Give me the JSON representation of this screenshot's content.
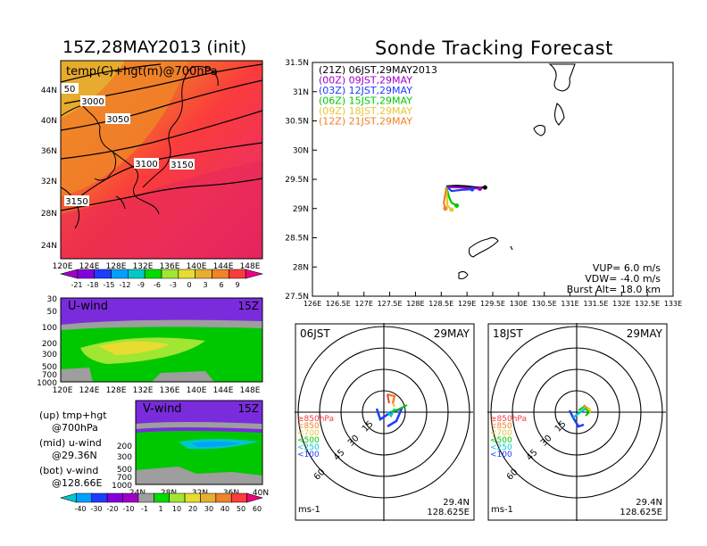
{
  "titles": {
    "left": "15Z,28MAY2013 (init)",
    "right": "Sonde Tracking Forecast"
  },
  "map_panel": {
    "label": "temp(C)+hgt(m)@700hPa",
    "lat_ticks": [
      "44N",
      "40N",
      "36N",
      "32N",
      "28N",
      "24N"
    ],
    "lon_ticks": [
      "120E",
      "124E",
      "128E",
      "132E",
      "136E",
      "140E",
      "144E",
      "148E"
    ],
    "contour_labels": [
      "50",
      "3000",
      "3050",
      "3100",
      "3150",
      "3150"
    ],
    "colorbar_ticks": [
      "-21",
      "-18",
      "-15",
      "-12",
      "-9",
      "-6",
      "-3",
      "0",
      "3",
      "6",
      "9"
    ],
    "colorbar_colors": [
      "#a000c8",
      "#8200dc",
      "#1e3cff",
      "#00a0ff",
      "#00c8c8",
      "#00dc00",
      "#a0e632",
      "#e6dc32",
      "#e6af2d",
      "#f08228",
      "#fa3c3c",
      "#f00082"
    ]
  },
  "u_panel": {
    "label": "U-wind",
    "time": "15Z",
    "y_ticks": [
      "30",
      "50",
      "100",
      "200",
      "300",
      "500",
      "700",
      "1000"
    ],
    "x_ticks": [
      "120E",
      "124E",
      "128E",
      "132E",
      "136E",
      "140E",
      "144E",
      "148E"
    ]
  },
  "v_panel": {
    "label": "V-wind",
    "time": "15Z",
    "y_ticks": [
      "200",
      "300",
      "500",
      "700",
      "1000"
    ],
    "x_ticks": [
      "24N",
      "28N",
      "32N",
      "36N",
      "40N"
    ]
  },
  "wind_colorbar": {
    "ticks": [
      "-40",
      "-30",
      "-20",
      "-10",
      "-1",
      "1",
      "10",
      "20",
      "30",
      "40",
      "50",
      "60"
    ],
    "colors": [
      "#00c8c8",
      "#00a0ff",
      "#1e3cff",
      "#8200dc",
      "#a000c8",
      "#9e9e9e",
      "#00dc00",
      "#a0e632",
      "#e6dc32",
      "#e6af2d",
      "#f08228",
      "#fa3c3c",
      "#f00082"
    ]
  },
  "left_notes": [
    {
      "line1": "(up) tmp+hgt",
      "line2": "@700hPa"
    },
    {
      "line1": "(mid) u-wind",
      "line2": "@29.36N"
    },
    {
      "line1": "(bot) v-wind",
      "line2": "@128.66E"
    }
  ],
  "chart_data": {
    "type": "line",
    "title": "Sonde Tracking Forecast",
    "xlim": [
      126,
      133
    ],
    "ylim": [
      27.5,
      31.5
    ],
    "x_ticks": [
      "126E",
      "126.5E",
      "127E",
      "127.5E",
      "128E",
      "128.5E",
      "129E",
      "129.5E",
      "130E",
      "130.5E",
      "131E",
      "131.5E",
      "132E",
      "132.5E",
      "133E"
    ],
    "y_ticks": [
      "31.5N",
      "31N",
      "30.5N",
      "30N",
      "29.5N",
      "29N",
      "28.5N",
      "28N",
      "27.5N"
    ],
    "legend": [
      {
        "tag": "(21Z)",
        "label": "06JST,29MAY2013",
        "color": "#000000"
      },
      {
        "tag": "(00Z)",
        "label": "09JST,29MAY",
        "color": "#a000c8"
      },
      {
        "tag": "(03Z)",
        "label": "12JST,29MAY",
        "color": "#1e3cff"
      },
      {
        "tag": "(06Z)",
        "label": "15JST,29MAY",
        "color": "#00c800"
      },
      {
        "tag": "(09Z)",
        "label": "18JST,29MAY",
        "color": "#e6c832"
      },
      {
        "tag": "(12Z)",
        "label": "21JST,29MAY",
        "color": "#f08228"
      }
    ],
    "series": [
      {
        "color": "#000000",
        "x": [
          128.6,
          128.8,
          129.0,
          129.2,
          129.35
        ],
        "y": [
          29.38,
          29.39,
          29.38,
          29.36,
          29.36
        ]
      },
      {
        "color": "#a000c8",
        "x": [
          128.6,
          128.85,
          129.1,
          129.25
        ],
        "y": [
          29.37,
          29.36,
          29.35,
          29.34
        ]
      },
      {
        "color": "#1e3cff",
        "x": [
          128.6,
          128.7,
          128.9,
          129.1
        ],
        "y": [
          29.38,
          29.3,
          29.32,
          29.33
        ]
      },
      {
        "color": "#00c800",
        "x": [
          128.6,
          128.65,
          128.7,
          128.8
        ],
        "y": [
          29.37,
          29.2,
          29.1,
          29.05
        ]
      },
      {
        "color": "#e6c832",
        "x": [
          128.6,
          128.62,
          128.7
        ],
        "y": [
          29.36,
          29.05,
          28.98
        ]
      },
      {
        "color": "#f08228",
        "x": [
          128.6,
          128.55,
          128.58
        ],
        "y": [
          29.36,
          29.1,
          29.0
        ]
      }
    ],
    "params": [
      {
        "label": "VUP=",
        "value": "6.0",
        "unit": "m/s"
      },
      {
        "label": "VDW=",
        "value": "-4.0",
        "unit": "m/s"
      },
      {
        "label": "Burst Alt=",
        "value": "18.0",
        "unit": "km"
      }
    ]
  },
  "hodographs": [
    {
      "time": "06JST",
      "date": "29MAY",
      "ring_labels": [
        "15",
        "30",
        "45",
        "60"
      ],
      "levels": [
        {
          "label": "≥850hPa",
          "color": "#fa3c3c"
        },
        {
          "label": "<850",
          "color": "#f08228"
        },
        {
          "label": "<700",
          "color": "#e6c832"
        },
        {
          "label": "<500",
          "color": "#00c800"
        },
        {
          "label": "<250",
          "color": "#00c8c8"
        },
        {
          "label": "<100",
          "color": "#1e3cff"
        }
      ],
      "unit": "ms-1",
      "lat": "29.4N",
      "lon": "128.625E"
    },
    {
      "time": "18JST",
      "date": "29MAY",
      "ring_labels": [
        "15",
        "30",
        "45",
        "60"
      ],
      "levels": [
        {
          "label": "≥850hPa",
          "color": "#fa3c3c"
        },
        {
          "label": "<850",
          "color": "#f08228"
        },
        {
          "label": "<700",
          "color": "#e6c832"
        },
        {
          "label": "<500",
          "color": "#00c800"
        },
        {
          "label": "<250",
          "color": "#00c8c8"
        },
        {
          "label": "<100",
          "color": "#1e3cff"
        }
      ],
      "unit": "ms-1",
      "lat": "29.4N",
      "lon": "128.625E"
    }
  ]
}
